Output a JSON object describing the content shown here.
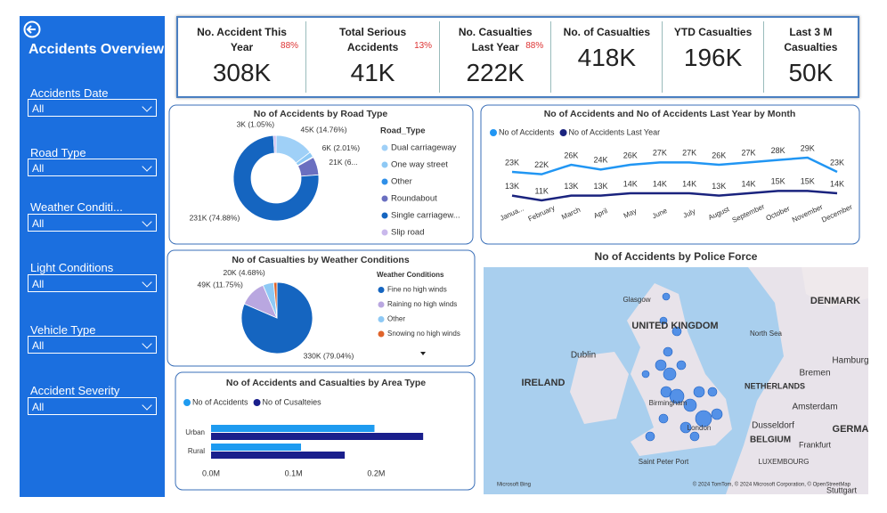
{
  "sidebar": {
    "title": "Accidents Overview",
    "filters": [
      {
        "label": "Accidents Date",
        "value": "All"
      },
      {
        "label": "Road Type",
        "value": "All"
      },
      {
        "label": "Weather Conditi...",
        "value": "All"
      },
      {
        "label": "Light Conditions",
        "value": "All"
      },
      {
        "label": "Vehicle Type",
        "value": "All"
      },
      {
        "label": "Accident Severity",
        "value": "All"
      }
    ]
  },
  "kpis": [
    {
      "title": "No. Accident This Year",
      "value": "308K",
      "change": "88%"
    },
    {
      "title": "Total Serious Accidents",
      "value": "41K",
      "change": "13%"
    },
    {
      "title": "No. Casualties Last Year",
      "value": "222K",
      "change": "88%"
    },
    {
      "title": "No. of Casualties",
      "value": "418K"
    },
    {
      "title": "YTD Casualties",
      "value": "196K"
    },
    {
      "title": "Last 3 M Casualties",
      "value": "50K"
    }
  ],
  "chart_data": [
    {
      "type": "donut",
      "title": "No of Accidents by Road Type",
      "legend_title": "Road_Type",
      "categories": [
        "Dual carriageway",
        "One way street",
        "Other",
        "Roundabout",
        "Single carriagew...",
        "Slip road"
      ],
      "values": [
        45000,
        6000,
        1000,
        21000,
        231000,
        3000
      ],
      "value_labels": [
        "45K (14.76%)",
        "6K (2.01%)",
        null,
        "21K (6...",
        "231K (74.88%)",
        "3K (1.05%)"
      ],
      "colors": [
        "#9fd0f7",
        "#8ec9f5",
        "#2f8fe8",
        "#6a6fc0",
        "#1565c0",
        "#c9b8ec"
      ]
    },
    {
      "type": "line",
      "title": "No of Accidents and No of Accidents Last Year by Month",
      "categories": [
        "Janua...",
        "February",
        "March",
        "April",
        "May",
        "June",
        "July",
        "August",
        "September",
        "October",
        "November",
        "December"
      ],
      "series": [
        {
          "name": "No of Accidents",
          "color": "#2196f3",
          "values": [
            23,
            22,
            26,
            24,
            26,
            27,
            27,
            26,
            27,
            28,
            29,
            23
          ],
          "value_labels": [
            "23K",
            "22K",
            "26K",
            "24K",
            "26K",
            "27K",
            "27K",
            "26K",
            "27K",
            "28K",
            "29K",
            "23K"
          ]
        },
        {
          "name": "No of Accidents Last Year",
          "color": "#1a237e",
          "values": [
            13,
            11,
            13,
            13,
            14,
            14,
            14,
            13,
            14,
            15,
            15,
            14
          ],
          "value_labels": [
            "13K",
            "11K",
            "13K",
            "13K",
            "14K",
            "14K",
            "14K",
            "13K",
            "14K",
            "15K",
            "15K",
            "14K"
          ]
        }
      ]
    },
    {
      "type": "pie",
      "title": "No of Casualties by Weather Conditions",
      "legend_title": "Weather Conditions",
      "categories": [
        "Fine no high winds",
        "Raining no high winds",
        "Other",
        "Snowing no high winds"
      ],
      "values": [
        330000,
        49000,
        20000,
        6000
      ],
      "value_labels": [
        "330K (79.04%)",
        "49K (11.75%)",
        "20K (4.68%)",
        null
      ],
      "colors": [
        "#1565c0",
        "#b9a7e0",
        "#8ec9f5",
        "#e0642b"
      ]
    },
    {
      "type": "hbar",
      "title": "No of Accidents and Casualties by Area Type",
      "categories": [
        "Urban",
        "Rural"
      ],
      "series": [
        {
          "name": "No of Accidents",
          "color": "#1e9bf0",
          "values": [
            198000,
            109000
          ]
        },
        {
          "name": "No of Cusalteies",
          "color": "#1a1f8c",
          "values": [
            257000,
            162000
          ]
        }
      ],
      "xlim": [
        0,
        300000
      ],
      "xticks": [
        {
          "value": 0,
          "label": "0.0M"
        },
        {
          "value": 100000,
          "label": "0.1M"
        },
        {
          "value": 200000,
          "label": "0.2M"
        }
      ]
    }
  ],
  "map": {
    "title": "No of Accidents by Police Force",
    "labels": [
      "UNITED KINGDOM",
      "IRELAND",
      "DENMARK",
      "NETHERLANDS",
      "BELGIUM",
      "GERMA",
      "North Sea",
      "Glasgow",
      "Dublin",
      "Birmingham",
      "London",
      "Bremen",
      "Hamburg",
      "Amsterdam",
      "Dusseldorf",
      "Frankfurt",
      "LUXEMBOURG",
      "Saint Peter Port",
      "Stuttgart"
    ],
    "provider": "Microsoft Bing",
    "attribution": "© 2024 TomTom, © 2024 Microsoft Corporation, © OpenStreetMap"
  }
}
